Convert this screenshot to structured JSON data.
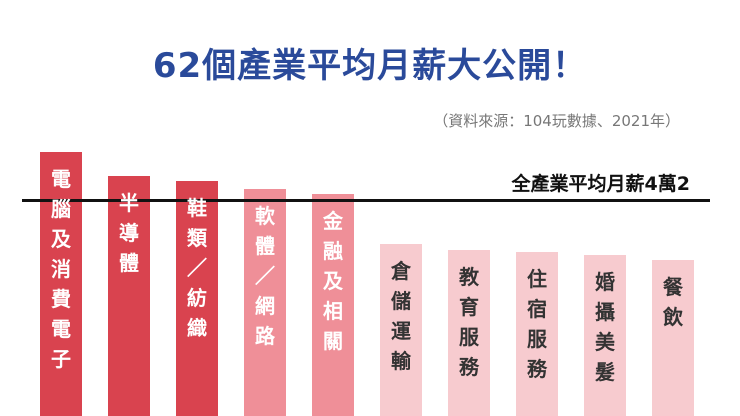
{
  "title": "62個產業平均月薪大公開！",
  "source": "（資料來源：104玩數據、2021年）",
  "average_label": "全產業平均月薪4萬2",
  "colors": {
    "title": "#2a4a9a",
    "dark_bar": "#d9434f",
    "mid_bar": "#ef8f98",
    "light_bar": "#f7cbcf"
  },
  "chart_data": {
    "type": "bar",
    "title": "62個產業平均月薪大公開！",
    "categories": [
      "電腦及消費電子",
      "半導體",
      "鞋類／紡織",
      "軟體／網路",
      "金融及相關",
      "倉儲運輸",
      "教育服務",
      "住宿服務",
      "婚攝美髮",
      "餐飲"
    ],
    "display_labels": [
      "電\n腦\n及\n消\n費\n電\n子",
      "半\n導\n體",
      "鞋\n類\n／\n紡\n織",
      "軟\n體\n／\n網\n路",
      "金\n融\n及\n相\n關",
      "倉\n儲\n運\n輸",
      "教\n育\n服\n務",
      "住\n宿\n服\n務",
      "婚\n攝\n美\n髮",
      "餐\n飲"
    ],
    "relative_values": [
      1.0,
      0.91,
      0.89,
      0.86,
      0.84,
      0.65,
      0.63,
      0.62,
      0.61,
      0.59
    ],
    "bar_colors": [
      "#d9434f",
      "#d9434f",
      "#d9434f",
      "#ef8f98",
      "#ef8f98",
      "#f7cbcf",
      "#f7cbcf",
      "#f7cbcf",
      "#f7cbcf",
      "#f7cbcf"
    ],
    "text_colors": [
      "#ffffff",
      "#ffffff",
      "#ffffff",
      "#ffffff",
      "#ffffff",
      "#333333",
      "#333333",
      "#333333",
      "#333333",
      "#333333"
    ],
    "reference_line": {
      "label": "全產業平均月薪4萬2",
      "relative_value": 0.82
    },
    "grid": false
  }
}
